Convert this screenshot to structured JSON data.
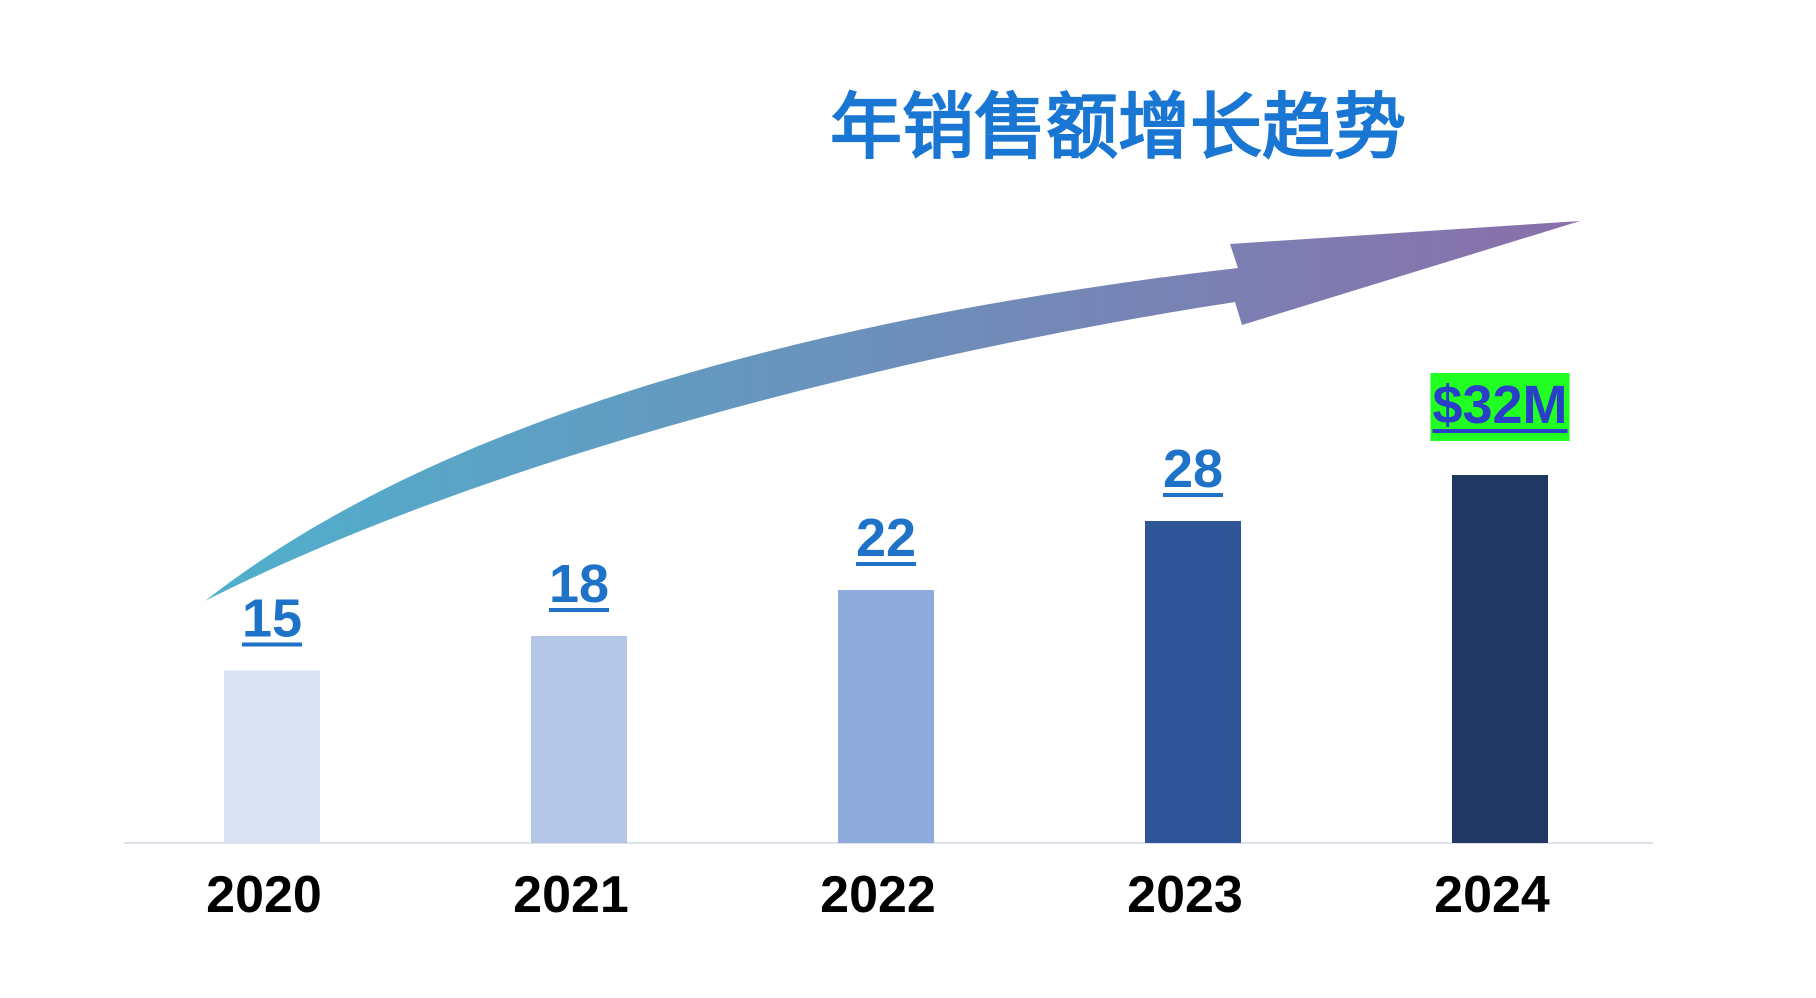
{
  "colors": {
    "title": "#1976D2",
    "value_label": "#1E73C8",
    "last_value_label": "#2A3FC8",
    "last_value_highlight": "#22FF22",
    "axis": "#DCE1EB",
    "arrow_start": "#4FB0CC",
    "arrow_end": "#8A6FAA",
    "bars": [
      "#DAE3F3",
      "#B4C7E7",
      "#8FAADC",
      "#2F5597",
      "#203864"
    ]
  },
  "chart_data": {
    "type": "bar",
    "title": "年销售额增长趋势",
    "categories": [
      "2020",
      "2021",
      "2022",
      "2023",
      "2024"
    ],
    "values": [
      15,
      18,
      22,
      28,
      32
    ],
    "data_labels": [
      "15",
      "18",
      "22",
      "28",
      "$32M"
    ],
    "xlabel": "",
    "ylabel": "",
    "ylim": [
      0,
      32
    ],
    "grid": false,
    "legend": "none",
    "annotations": [
      "upward-trend-arrow"
    ]
  }
}
